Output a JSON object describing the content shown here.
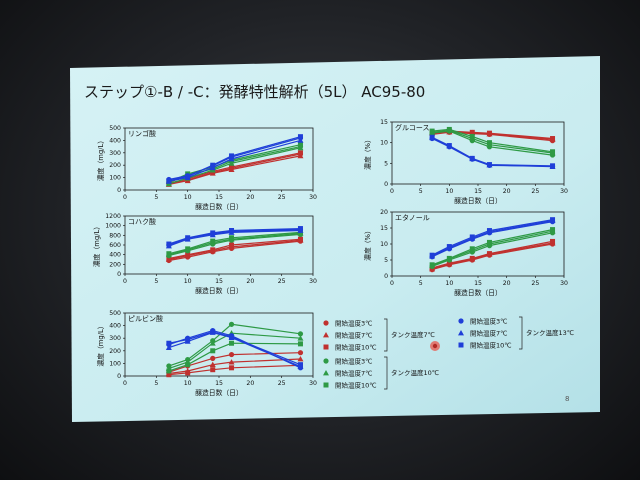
{
  "slide": {
    "title": "ステップ①-B / -C：発酵特性解析（5L） AC95-80",
    "page_number": "8"
  },
  "colors": {
    "red": "#c0312f",
    "green": "#2e9a45",
    "blue": "#1f3fd8",
    "slide_bg": "#cfeef2",
    "slide_bg_edge": "#a9dbe3",
    "axis": "#1a1a1a"
  },
  "legend": {
    "tank7": {
      "bracket_label": "タンク温度7℃",
      "items": [
        {
          "label": "開始温度3℃",
          "marker": "circle",
          "color": "red"
        },
        {
          "label": "開始温度7℃",
          "marker": "triangle",
          "color": "red"
        },
        {
          "label": "開始温度10℃",
          "marker": "square",
          "color": "red"
        }
      ]
    },
    "tank10": {
      "bracket_label": "タンク温度10℃",
      "items": [
        {
          "label": "開始温度3℃",
          "marker": "circle",
          "color": "green"
        },
        {
          "label": "開始温度7℃",
          "marker": "triangle",
          "color": "green"
        },
        {
          "label": "開始温度10℃",
          "marker": "square",
          "color": "green"
        }
      ]
    },
    "tank13": {
      "bracket_label": "タンク温度13℃",
      "items": [
        {
          "label": "開始温度3℃",
          "marker": "circle",
          "color": "blue"
        },
        {
          "label": "開始温度7℃",
          "marker": "triangle",
          "color": "blue"
        },
        {
          "label": "開始温度10℃",
          "marker": "square",
          "color": "blue"
        }
      ]
    }
  },
  "chart_data": [
    {
      "id": "malic",
      "type": "line",
      "title": "リンゴ酸",
      "ylabel": "濃度（mg/L）",
      "xlabel": "醸造日数（日）",
      "xlim": [
        0,
        30
      ],
      "ylim": [
        0,
        500
      ],
      "xticks": [
        0,
        5,
        10,
        15,
        20,
        25,
        30
      ],
      "yticks": [
        0,
        100,
        200,
        300,
        400,
        500
      ],
      "x": [
        7,
        10,
        14,
        17,
        28
      ],
      "series": [
        {
          "color": "red",
          "marker": "circle",
          "values": [
            50,
            80,
            140,
            175,
            290
          ]
        },
        {
          "color": "red",
          "marker": "triangle",
          "values": [
            45,
            75,
            135,
            165,
            275
          ]
        },
        {
          "color": "red",
          "marker": "square",
          "values": [
            55,
            90,
            150,
            185,
            300
          ]
        },
        {
          "color": "green",
          "marker": "circle",
          "values": [
            60,
            120,
            170,
            230,
            350
          ]
        },
        {
          "color": "green",
          "marker": "triangle",
          "values": [
            50,
            95,
            160,
            215,
            340
          ]
        },
        {
          "color": "green",
          "marker": "square",
          "values": [
            65,
            130,
            185,
            240,
            365
          ]
        },
        {
          "color": "blue",
          "marker": "circle",
          "values": [
            85,
            115,
            195,
            265,
            420
          ]
        },
        {
          "color": "blue",
          "marker": "triangle",
          "values": [
            70,
            100,
            180,
            250,
            400
          ]
        },
        {
          "color": "blue",
          "marker": "square",
          "values": [
            75,
            110,
            200,
            275,
            430
          ]
        }
      ]
    },
    {
      "id": "glucose",
      "type": "line",
      "title": "グルコース",
      "ylabel": "濃度（%）",
      "xlabel": "醸造日数（日）",
      "xlim": [
        0,
        30
      ],
      "ylim": [
        0,
        15
      ],
      "xticks": [
        0,
        5,
        10,
        15,
        20,
        25,
        30
      ],
      "yticks": [
        0,
        5,
        10,
        15
      ],
      "x": [
        7,
        10,
        14,
        17,
        28
      ],
      "series": [
        {
          "color": "red",
          "marker": "circle",
          "values": [
            12.0,
            12.5,
            12.2,
            12.0,
            10.5
          ]
        },
        {
          "color": "red",
          "marker": "triangle",
          "values": [
            12.3,
            12.6,
            12.4,
            12.1,
            10.8
          ]
        },
        {
          "color": "red",
          "marker": "square",
          "values": [
            12.5,
            12.8,
            12.5,
            12.3,
            11.0
          ]
        },
        {
          "color": "green",
          "marker": "circle",
          "values": [
            12.3,
            12.8,
            10.5,
            9.0,
            7.0
          ]
        },
        {
          "color": "green",
          "marker": "triangle",
          "values": [
            12.5,
            13.0,
            11.0,
            9.5,
            7.5
          ]
        },
        {
          "color": "green",
          "marker": "square",
          "values": [
            12.8,
            13.2,
            11.5,
            10.0,
            7.8
          ]
        },
        {
          "color": "blue",
          "marker": "circle",
          "values": [
            11.0,
            9.0,
            6.0,
            4.5,
            4.3
          ]
        },
        {
          "color": "blue",
          "marker": "triangle",
          "values": [
            11.2,
            9.2,
            6.1,
            4.6,
            4.2
          ]
        },
        {
          "color": "blue",
          "marker": "square",
          "values": [
            11.3,
            9.3,
            6.2,
            4.7,
            4.4
          ]
        }
      ]
    },
    {
      "id": "succinic",
      "type": "line",
      "title": "コハク酸",
      "ylabel": "濃度（mg/L）",
      "xlabel": "醸造日数（日）",
      "xlim": [
        0,
        30
      ],
      "ylim": [
        0,
        1200
      ],
      "xticks": [
        0,
        5,
        10,
        15,
        20,
        25,
        30
      ],
      "yticks": [
        0,
        200,
        400,
        600,
        800,
        1000,
        1200
      ],
      "x": [
        7,
        10,
        14,
        17,
        28
      ],
      "series": [
        {
          "color": "red",
          "marker": "circle",
          "values": [
            280,
            350,
            460,
            530,
            680
          ]
        },
        {
          "color": "red",
          "marker": "triangle",
          "values": [
            300,
            380,
            480,
            560,
            700
          ]
        },
        {
          "color": "red",
          "marker": "square",
          "values": [
            320,
            400,
            500,
            600,
            720
          ]
        },
        {
          "color": "green",
          "marker": "circle",
          "values": [
            380,
            480,
            620,
            700,
            820
          ]
        },
        {
          "color": "green",
          "marker": "triangle",
          "values": [
            400,
            500,
            650,
            720,
            840
          ]
        },
        {
          "color": "green",
          "marker": "square",
          "values": [
            420,
            520,
            680,
            750,
            860
          ]
        },
        {
          "color": "blue",
          "marker": "circle",
          "values": [
            600,
            740,
            830,
            880,
            920
          ]
        },
        {
          "color": "blue",
          "marker": "triangle",
          "values": [
            580,
            720,
            810,
            860,
            900
          ]
        },
        {
          "color": "blue",
          "marker": "square",
          "values": [
            620,
            750,
            850,
            900,
            940
          ]
        }
      ]
    },
    {
      "id": "ethanol",
      "type": "line",
      "title": "エタノール",
      "ylabel": "濃度（%）",
      "xlabel": "醸造日数（日）",
      "xlim": [
        0,
        30
      ],
      "ylim": [
        0,
        20
      ],
      "xticks": [
        0,
        5,
        10,
        15,
        20,
        25,
        30
      ],
      "yticks": [
        0,
        5,
        10,
        15,
        20
      ],
      "x": [
        7,
        10,
        14,
        17,
        28
      ],
      "series": [
        {
          "color": "red",
          "marker": "circle",
          "values": [
            2.0,
            3.5,
            5.0,
            6.5,
            10.0
          ]
        },
        {
          "color": "red",
          "marker": "triangle",
          "values": [
            2.2,
            3.7,
            5.3,
            6.8,
            10.3
          ]
        },
        {
          "color": "red",
          "marker": "square",
          "values": [
            2.5,
            4.0,
            5.5,
            7.0,
            10.8
          ]
        },
        {
          "color": "green",
          "marker": "circle",
          "values": [
            3.0,
            5.0,
            7.5,
            9.5,
            13.5
          ]
        },
        {
          "color": "green",
          "marker": "triangle",
          "values": [
            3.2,
            5.3,
            8.0,
            10.0,
            14.0
          ]
        },
        {
          "color": "green",
          "marker": "square",
          "values": [
            3.5,
            5.5,
            8.5,
            10.5,
            14.5
          ]
        },
        {
          "color": "blue",
          "marker": "circle",
          "values": [
            6.0,
            8.5,
            11.5,
            13.5,
            17.0
          ]
        },
        {
          "color": "blue",
          "marker": "triangle",
          "values": [
            6.2,
            8.8,
            11.8,
            13.8,
            17.3
          ]
        },
        {
          "color": "blue",
          "marker": "square",
          "values": [
            6.5,
            9.2,
            12.2,
            14.2,
            17.6
          ]
        }
      ]
    },
    {
      "id": "pyruvic",
      "type": "line",
      "title": "ピルビン酸",
      "ylabel": "濃度（mg/L）",
      "xlabel": "醸造日数（日）",
      "xlim": [
        0,
        30
      ],
      "ylim": [
        0,
        500
      ],
      "xticks": [
        0,
        5,
        10,
        15,
        20,
        25,
        30
      ],
      "yticks": [
        0,
        100,
        200,
        300,
        400,
        500
      ],
      "x": [
        7,
        10,
        14,
        17,
        28
      ],
      "series": [
        {
          "color": "red",
          "marker": "circle",
          "values": [
            30,
            80,
            140,
            170,
            185
          ]
        },
        {
          "color": "red",
          "marker": "triangle",
          "values": [
            20,
            40,
            90,
            110,
            135
          ]
        },
        {
          "color": "red",
          "marker": "square",
          "values": [
            10,
            25,
            50,
            65,
            85
          ]
        },
        {
          "color": "green",
          "marker": "circle",
          "values": [
            80,
            130,
            280,
            410,
            335
          ]
        },
        {
          "color": "green",
          "marker": "triangle",
          "values": [
            60,
            110,
            260,
            340,
            300
          ]
        },
        {
          "color": "green",
          "marker": "square",
          "values": [
            40,
            90,
            200,
            260,
            255
          ]
        },
        {
          "color": "blue",
          "marker": "circle",
          "values": [
            250,
            300,
            360,
            320,
            65
          ]
        },
        {
          "color": "blue",
          "marker": "triangle",
          "values": [
            225,
            275,
            345,
            305,
            75
          ]
        },
        {
          "color": "blue",
          "marker": "square",
          "values": [
            260,
            290,
            350,
            310,
            90
          ]
        }
      ]
    }
  ]
}
